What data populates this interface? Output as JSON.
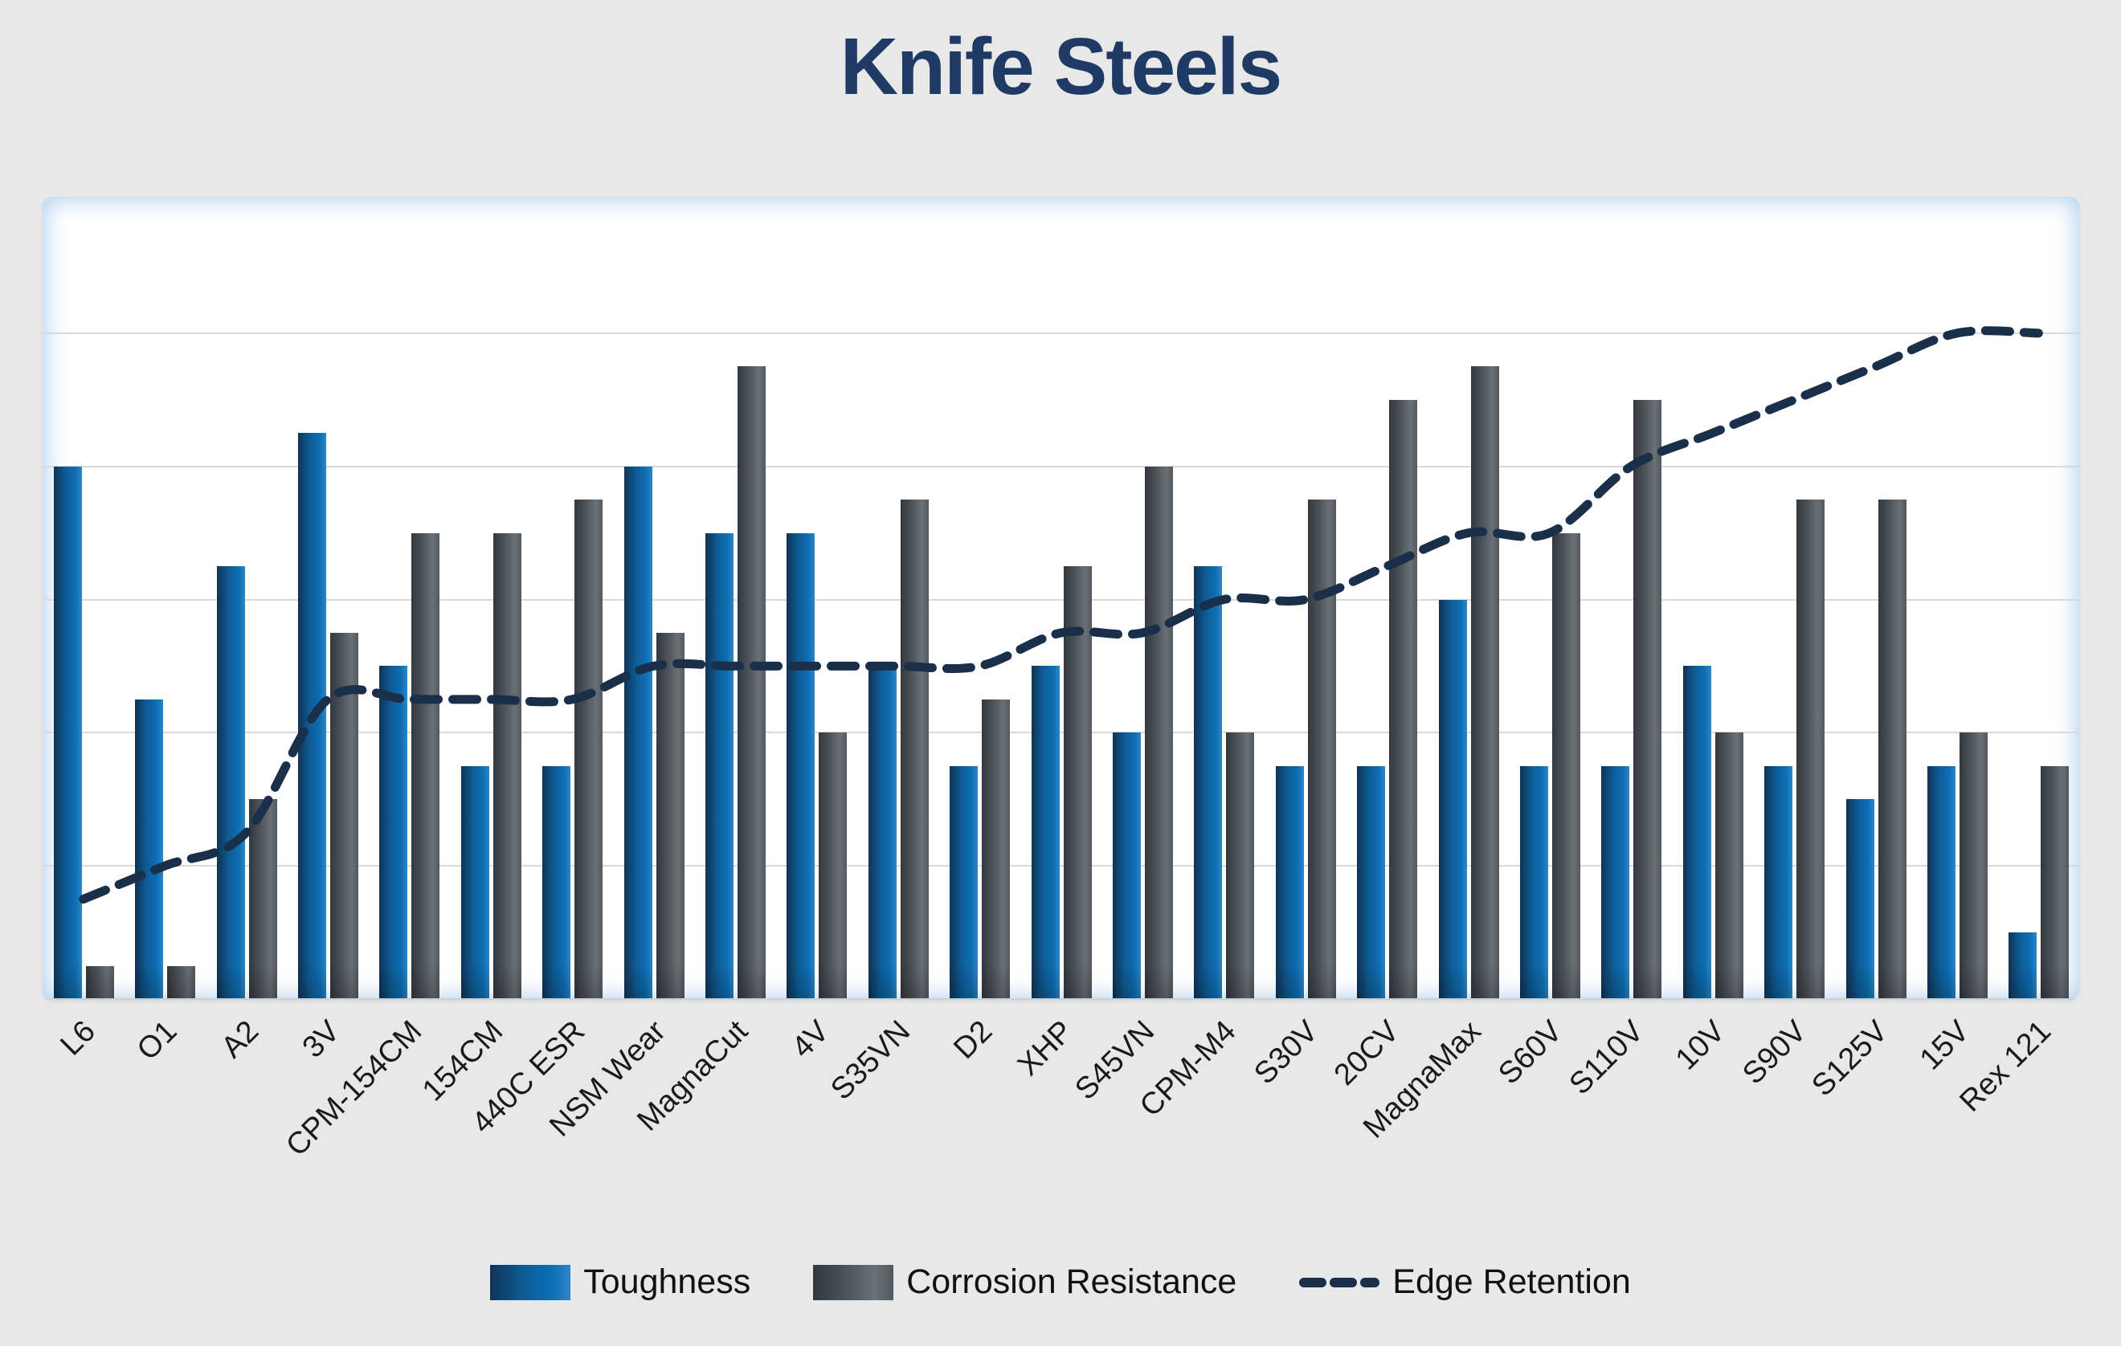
{
  "chart_data": {
    "type": "combo-bar-line",
    "title": "Knife Steels",
    "categories": [
      "L6",
      "O1",
      "A2",
      "3V",
      "CPM-154CM",
      "154CM",
      "440C ESR",
      "NSM Wear",
      "MagnaCut",
      "4V",
      "S35VN",
      "D2",
      "XHP",
      "S45VN",
      "CPM-M4",
      "S30V",
      "20CV",
      "MagnaMax",
      "S60V",
      "S110V",
      "10V",
      "S90V",
      "S125V",
      "15V",
      "Rex 121"
    ],
    "series": [
      {
        "name": "Toughness",
        "type": "bar",
        "values": [
          8,
          4.5,
          6.5,
          8.5,
          5,
          3.5,
          3.5,
          8,
          7,
          7,
          5,
          3.5,
          5,
          4,
          6.5,
          3.5,
          3.5,
          6,
          3.5,
          3.5,
          5,
          3.5,
          3,
          3.5,
          1
        ]
      },
      {
        "name": "Corrosion Resistance",
        "type": "bar",
        "values": [
          0.5,
          0.5,
          3,
          5.5,
          7,
          7,
          7.5,
          5.5,
          9.5,
          4,
          7.5,
          4.5,
          6.5,
          8,
          4,
          7.5,
          9,
          9.5,
          7,
          9,
          4,
          7.5,
          7.5,
          4,
          3.5
        ]
      },
      {
        "name": "Edge Retention",
        "type": "line",
        "line_style": "dashed",
        "values": [
          1.5,
          2,
          2.5,
          4.5,
          4.5,
          4.5,
          4.5,
          5,
          5,
          5,
          5,
          5,
          5.5,
          5.5,
          6,
          6,
          6.5,
          7,
          7,
          8,
          8.5,
          9,
          9.5,
          10,
          10
        ]
      }
    ],
    "ylim": [
      0,
      12
    ],
    "y_gridline_step": 2,
    "grid": true,
    "legend_position": "bottom",
    "x_tick_rotation": -45
  },
  "colors": {
    "background": "#E8E8E8",
    "plot_background": "#FFFFFF",
    "gridline": "#D9D9D9",
    "axis_line": "#CDD0D3",
    "title": "#203A66",
    "x_label": "#1A1A1A",
    "toughness_dark": "#0F3456",
    "toughness_mid": "#0D6FB5",
    "toughness_light": "#2F86C4",
    "corrosion_dark": "#33373E",
    "corrosion_mid": "#6B7077",
    "corrosion_light": "#54585F",
    "edge_retention_line": "#1A2F4A"
  }
}
